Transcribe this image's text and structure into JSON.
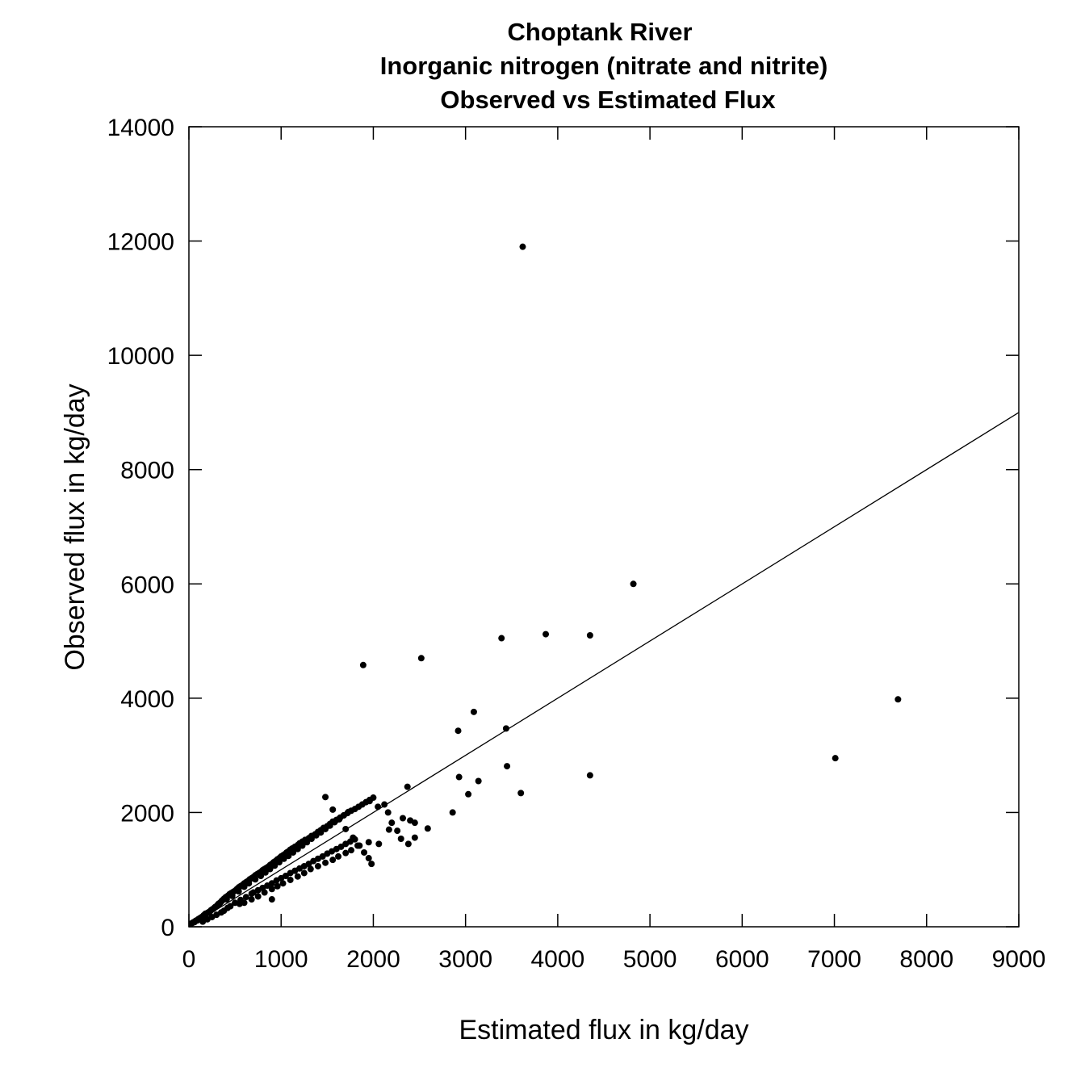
{
  "chart_data": {
    "type": "scatter",
    "title_lines": [
      "Choptank River",
      "Inorganic nitrogen (nitrate and nitrite)",
      "Observed vs Estimated Flux"
    ],
    "xlabel": "Estimated flux in kg/day",
    "ylabel": "Observed flux in kg/day",
    "xlim": [
      0,
      9000
    ],
    "ylim": [
      0,
      14000
    ],
    "x_ticks": [
      0,
      1000,
      2000,
      3000,
      4000,
      5000,
      6000,
      7000,
      8000,
      9000
    ],
    "y_ticks": [
      0,
      2000,
      4000,
      6000,
      8000,
      10000,
      12000,
      14000
    ],
    "x_tick_labels": [
      "0",
      "1000",
      "2000",
      "3000",
      "4000",
      "5000",
      "6000",
      "7000",
      "8000",
      "9000"
    ],
    "y_tick_labels": [
      "0",
      "2000",
      "4000",
      "6000",
      "8000",
      "10000",
      "12000",
      "14000"
    ],
    "grid": false,
    "reference_line": {
      "from": [
        0,
        0
      ],
      "to": [
        9000,
        9000
      ]
    },
    "series": [
      {
        "x": [
          30,
          40,
          50,
          60,
          70,
          80,
          90,
          100,
          110,
          120,
          130,
          140,
          150,
          160,
          170,
          180,
          190,
          200,
          210,
          220,
          230,
          240,
          250,
          260,
          270,
          280,
          290,
          300,
          310,
          320,
          330,
          340,
          350,
          360,
          370,
          380,
          390,
          400,
          420,
          440,
          460,
          480,
          500,
          520,
          540,
          560,
          580,
          600,
          620,
          640,
          660,
          680,
          700,
          720,
          740,
          760,
          780,
          800,
          820,
          840,
          860,
          880,
          900,
          920,
          940,
          960,
          980,
          1000,
          1020,
          1040,
          1060,
          1080,
          1100,
          1120,
          1150,
          1180,
          1200,
          1230,
          1260,
          1300,
          1330,
          1370,
          1400,
          1430,
          1460,
          1500,
          1530,
          1560,
          1600,
          1640,
          1680,
          1720,
          1760,
          1800,
          1840,
          1880,
          1920,
          1960,
          2000,
          150,
          200,
          250,
          300,
          350,
          380,
          420,
          450,
          500,
          560,
          620,
          680,
          700,
          750,
          800,
          850,
          900,
          950,
          1000,
          1050,
          1100,
          1150,
          1200,
          1250,
          1300,
          1350,
          1400,
          1450,
          1500,
          1550,
          1600,
          1650,
          1700,
          1750,
          1800,
          180,
          260,
          330,
          410,
          470,
          540,
          600,
          650,
          720,
          780,
          830,
          880,
          930,
          980,
          1030,
          1080,
          1130,
          1180,
          1230,
          1280,
          1330,
          1380,
          1430,
          1480,
          1530,
          1580,
          1630,
          1680,
          1730,
          550,
          600,
          680,
          750,
          820,
          900,
          960,
          1020,
          1100,
          1180,
          1250,
          1320,
          1400,
          1480,
          1560,
          1620,
          1700,
          1760,
          1850,
          1950,
          900,
          1480,
          1560,
          1630,
          1700,
          1780,
          1830,
          1900,
          1950,
          1980,
          2120,
          2160,
          2200,
          2260,
          2300,
          2380,
          2400,
          2450,
          2590,
          2050,
          1960,
          2060,
          1890,
          2520,
          2370,
          2170,
          2320,
          2450,
          2860,
          2920,
          2930,
          3030,
          3090,
          3140,
          3390,
          3440,
          3450,
          3600,
          3620,
          3870,
          4350,
          4350,
          4820,
          7010,
          7690
        ],
        "y": [
          60,
          70,
          80,
          80,
          100,
          110,
          110,
          130,
          140,
          150,
          160,
          170,
          180,
          200,
          210,
          220,
          230,
          240,
          250,
          260,
          270,
          290,
          300,
          310,
          320,
          340,
          350,
          360,
          380,
          400,
          410,
          420,
          440,
          460,
          470,
          490,
          500,
          520,
          540,
          570,
          590,
          610,
          630,
          660,
          690,
          710,
          730,
          760,
          780,
          800,
          830,
          850,
          870,
          900,
          920,
          940,
          960,
          990,
          1010,
          1030,
          1050,
          1080,
          1100,
          1130,
          1150,
          1180,
          1200,
          1230,
          1250,
          1270,
          1300,
          1320,
          1350,
          1370,
          1400,
          1430,
          1460,
          1490,
          1520,
          1550,
          1590,
          1620,
          1660,
          1690,
          1730,
          1760,
          1800,
          1840,
          1870,
          1910,
          1950,
          1990,
          2030,
          2060,
          2100,
          2140,
          2180,
          2220,
          2260,
          90,
          130,
          170,
          210,
          250,
          280,
          330,
          360,
          420,
          470,
          520,
          580,
          600,
          640,
          680,
          720,
          760,
          810,
          850,
          890,
          940,
          980,
          1020,
          1060,
          1100,
          1150,
          1190,
          1230,
          1280,
          1320,
          1360,
          1400,
          1450,
          1490,
          1530,
          230,
          310,
          400,
          480,
          540,
          620,
          700,
          760,
          830,
          890,
          950,
          1010,
          1070,
          1130,
          1190,
          1240,
          1300,
          1360,
          1420,
          1480,
          1540,
          1600,
          1650,
          1710,
          1770,
          1830,
          1890,
          1950,
          2010,
          400,
          420,
          480,
          530,
          600,
          660,
          710,
          760,
          820,
          880,
          940,
          1010,
          1060,
          1120,
          1170,
          1230,
          1290,
          1340,
          1420,
          1480,
          480,
          2270,
          2050,
          1880,
          1710,
          1560,
          1420,
          1300,
          1200,
          1100,
          2140,
          2000,
          1820,
          1680,
          1540,
          1450,
          1860,
          1820,
          1720,
          2100,
          2200,
          1450,
          4580,
          4700,
          2450,
          1700,
          1900,
          1560,
          2000,
          3430,
          2620,
          2320,
          3760,
          2550,
          5050,
          3470,
          2810,
          2340,
          11900,
          5120,
          5100,
          2650,
          6000,
          2950,
          3980
        ]
      }
    ]
  }
}
